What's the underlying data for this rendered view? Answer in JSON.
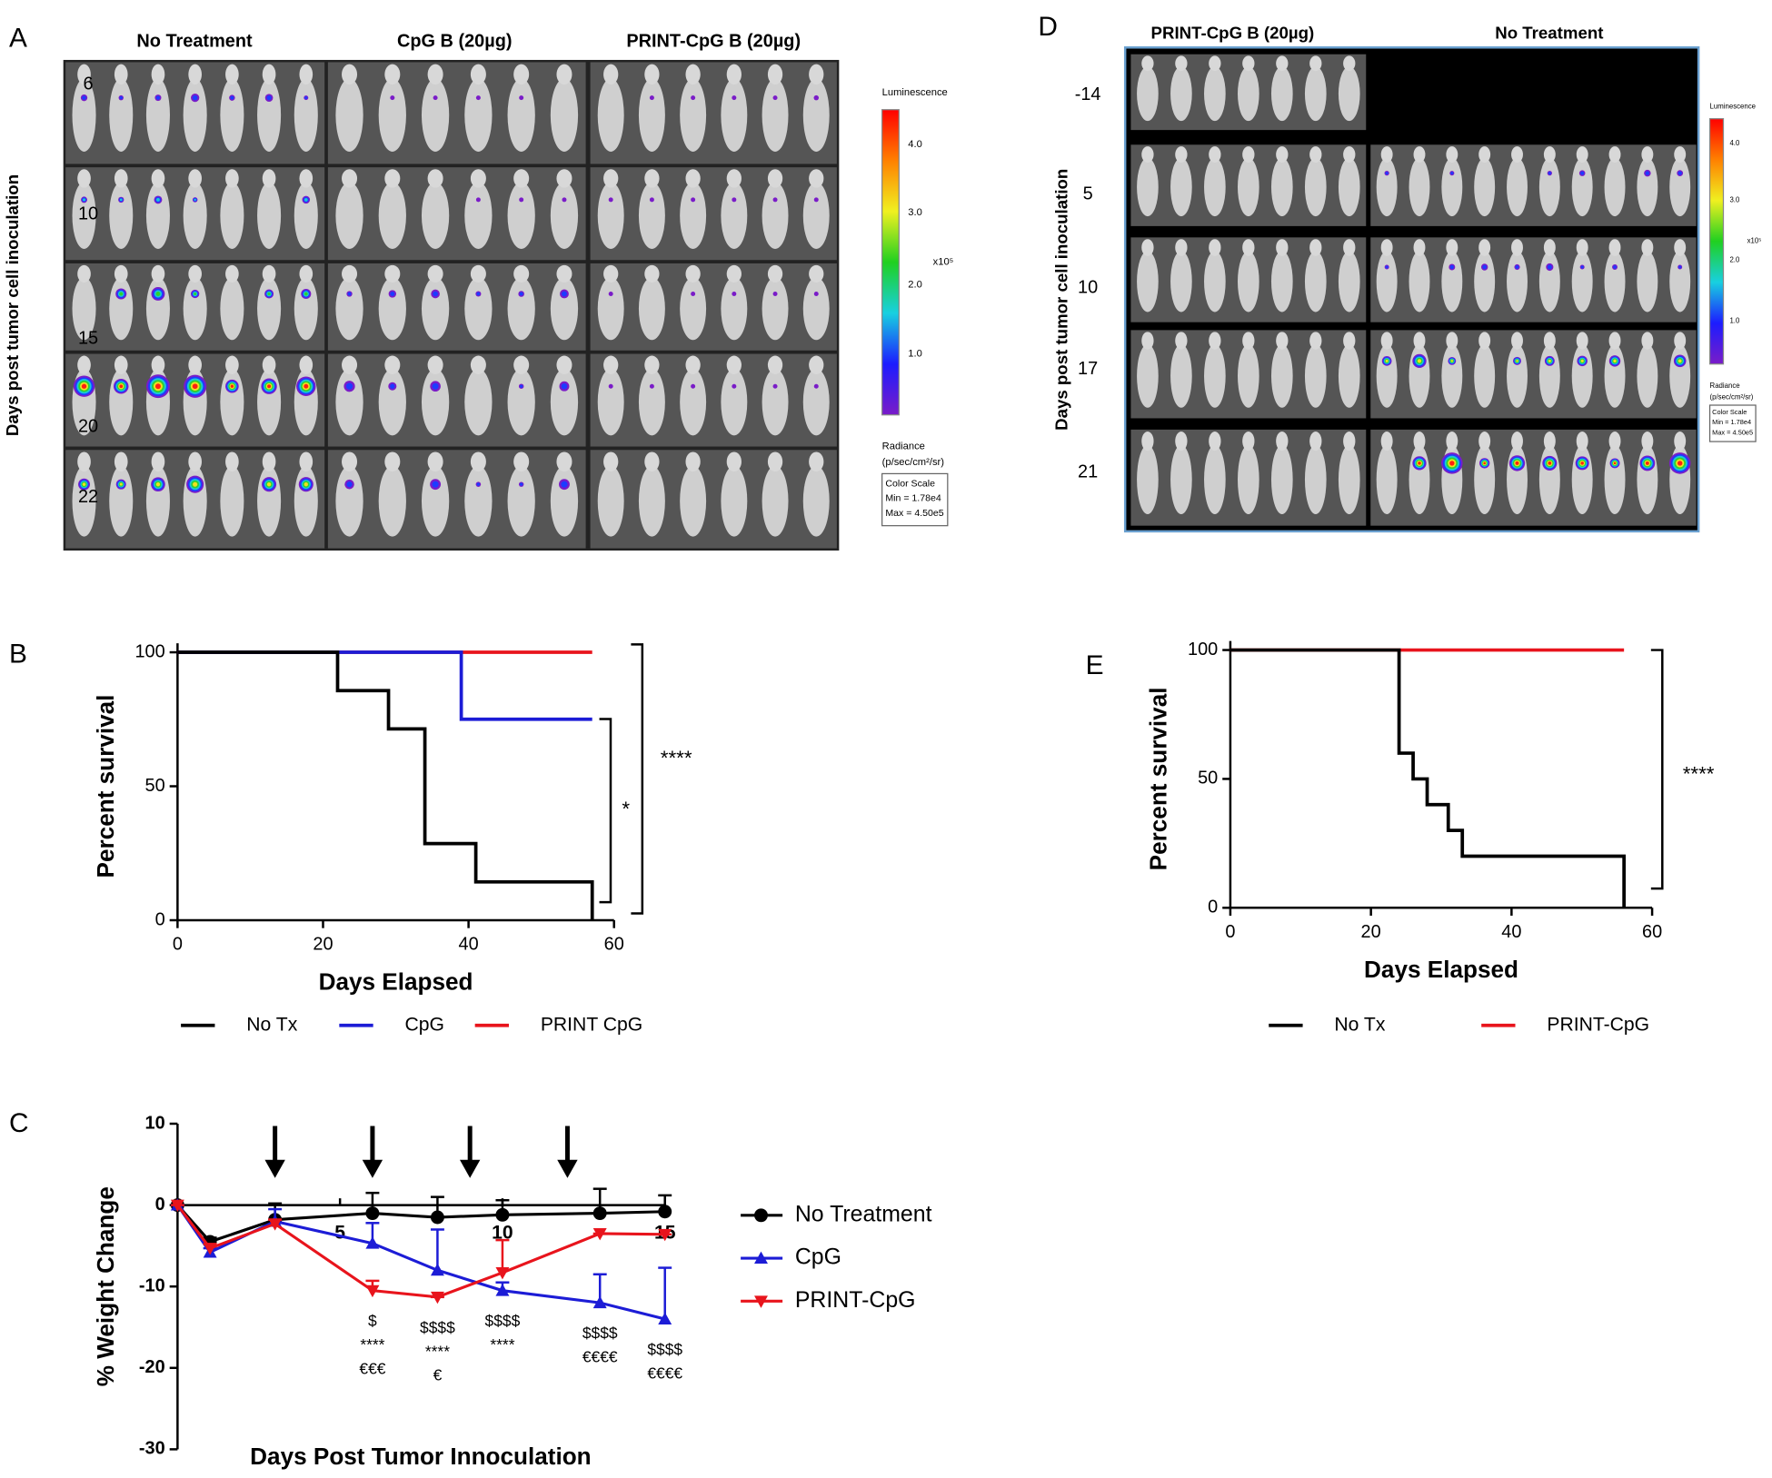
{
  "panel_labels": [
    "A",
    "B",
    "C",
    "D",
    "E"
  ],
  "imaging": [
    {
      "groups": [
        "No Treatment",
        "CpG B (20µg)",
        "PRINT-CpG B (20µg)"
      ],
      "row_labels": [
        "6",
        "10",
        "15",
        "20",
        "22"
      ],
      "y_label": "Days post tumor cell inoculation",
      "colorbar": {
        "title": "Luminescence",
        "ticks": [
          "4.0",
          "3.0",
          "2.0",
          "1.0"
        ],
        "multiplier": "x10⁵",
        "unit": [
          "Radiance",
          "(p/sec/cm²/sr)"
        ],
        "scale": [
          "Color Scale",
          "Min = 1.78e4",
          "Max = 4.50e5"
        ]
      }
    },
    {
      "groups": [
        "PRINT-CpG B (20µg)",
        "No Treatment"
      ],
      "row_labels": [
        "-14",
        "5",
        "10",
        "17",
        "21"
      ],
      "y_label": "Days post tumor cell inoculation",
      "colorbar": {
        "title": "Luminescence",
        "ticks": [
          "4.0",
          "3.0",
          "2.0",
          "1.0"
        ],
        "multiplier": "x10⁵",
        "unit": [
          "Radiance",
          "(p/sec/cm²/sr)"
        ],
        "scale": [
          "Color Scale",
          "Min = 1.78e4",
          "Max = 4.50e5"
        ]
      }
    }
  ],
  "chart_data": [
    {
      "type": "line",
      "step": true,
      "y_label": "Percent survival",
      "x_label": "Days Elapsed",
      "xlim": [
        0,
        60
      ],
      "xticks": [
        0,
        20,
        40,
        60
      ],
      "ylim": [
        0,
        100
      ],
      "yticks": [
        0,
        50,
        100
      ],
      "series": [
        {
          "name": "No Tx",
          "color": "#000000",
          "x": [
            0,
            22,
            29,
            34,
            41,
            57
          ],
          "values": [
            100,
            85.7,
            71.4,
            28.6,
            14.3,
            0
          ]
        },
        {
          "name": "CpG",
          "color": "#1c1cd6",
          "x": [
            0,
            39,
            57
          ],
          "values": [
            100,
            75,
            75
          ]
        },
        {
          "name": "PRINT CpG",
          "color": "#e8141c",
          "x": [
            0,
            57
          ],
          "values": [
            100,
            100
          ]
        }
      ],
      "annotations": [
        "*",
        "****"
      ]
    },
    {
      "type": "line",
      "step": false,
      "y_label": "% Weight Change",
      "x_label": "Days Post  Tumor Innoculation",
      "xlim": [
        0,
        15
      ],
      "xticks": [
        5,
        10,
        15
      ],
      "ylim": [
        -30,
        10
      ],
      "yticks": [
        -30,
        -20,
        -10,
        0,
        10
      ],
      "x": [
        0,
        1,
        3,
        6,
        8,
        10,
        13,
        15
      ],
      "series": [
        {
          "name": "No Treatment",
          "color": "#000000",
          "marker": "circle",
          "values": [
            0,
            -4.5,
            -1.8,
            -1,
            -1.5,
            -1.2,
            -1,
            -0.8
          ],
          "errors": [
            0,
            0.5,
            2,
            2.5,
            2.5,
            1.8,
            3,
            2
          ]
        },
        {
          "name": "CpG",
          "color": "#1c1cd6",
          "marker": "triangle-up",
          "values": [
            0,
            -5.8,
            -2,
            -4.7,
            -8,
            -10.5,
            -12,
            -14
          ],
          "errors": [
            0,
            0.5,
            1.5,
            2.5,
            5,
            1,
            3.5,
            6.3
          ]
        },
        {
          "name": "PRINT-CpG",
          "color": "#e8141c",
          "marker": "triangle-down",
          "values": [
            0,
            -5.3,
            -2.3,
            -10.5,
            -11.3,
            -8.3,
            -3.5,
            -3.6
          ],
          "errors": [
            0,
            0.5,
            0.5,
            1.2,
            0,
            4,
            0,
            0
          ]
        }
      ],
      "treatment_arrows_x": [
        3,
        6,
        9,
        12
      ],
      "annotations": [
        {
          "x": 6,
          "lines": [
            "$",
            "****",
            "€€€"
          ]
        },
        {
          "x": 8,
          "lines": [
            "$$$$",
            "****",
            "€"
          ]
        },
        {
          "x": 10,
          "lines": [
            "$$$$",
            "****"
          ]
        },
        {
          "x": 13,
          "lines": [
            "$$$$",
            "€€€€"
          ]
        },
        {
          "x": 15,
          "lines": [
            "$$$$",
            "€€€€"
          ]
        }
      ]
    },
    {
      "type": "line",
      "step": true,
      "y_label": "Percent survival",
      "x_label": "Days Elapsed",
      "xlim": [
        0,
        60
      ],
      "xticks": [
        0,
        20,
        40,
        60
      ],
      "ylim": [
        0,
        100
      ],
      "yticks": [
        0,
        50,
        100
      ],
      "series": [
        {
          "name": "No Tx",
          "color": "#000000",
          "x": [
            0,
            24,
            26,
            28,
            31,
            33,
            56
          ],
          "values": [
            100,
            60,
            50,
            40,
            30,
            20,
            0
          ]
        },
        {
          "name": "PRINT-CpG",
          "color": "#e8141c",
          "x": [
            0,
            56
          ],
          "values": [
            100,
            100
          ]
        }
      ],
      "annotations": [
        "****"
      ]
    }
  ]
}
